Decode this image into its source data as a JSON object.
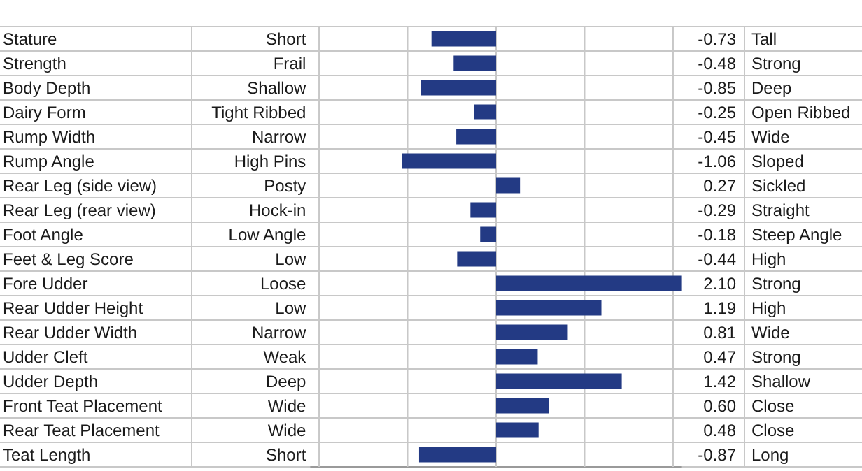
{
  "chart_data": {
    "type": "bar",
    "orientation": "horizontal",
    "categories": [
      "Stature",
      "Strength",
      "Body Depth",
      "Dairy Form",
      "Rump Width",
      "Rump Angle",
      "Rear Leg (side view)",
      "Rear Leg (rear view)",
      "Foot Angle",
      "Feet & Leg Score",
      "Fore Udder",
      "Rear Udder Height",
      "Rear Udder Width",
      "Udder Cleft",
      "Udder Depth",
      "Front Teat Placement",
      "Rear Teat Placement",
      "Teat Length"
    ],
    "values": [
      -0.73,
      -0.48,
      -0.85,
      -0.25,
      -0.45,
      -1.06,
      0.27,
      -0.29,
      -0.18,
      -0.44,
      2.1,
      1.19,
      0.81,
      0.47,
      1.42,
      0.6,
      0.48,
      -0.87
    ],
    "value_labels": [
      "-0.73",
      "-0.48",
      "-0.85",
      "-0.25",
      "-0.45",
      "-1.06",
      "0.27",
      "-0.29",
      "-0.18",
      "-0.44",
      "2.10",
      "1.19",
      "0.81",
      "0.47",
      "1.42",
      "0.60",
      "0.48",
      "-0.87"
    ],
    "color": "#233a84",
    "xlim": [
      -2.1,
      2.1
    ],
    "xticks": [
      {
        "value": -2,
        "label": null
      },
      {
        "value": -1,
        "label": null
      },
      {
        "value": 0,
        "label": null
      },
      {
        "value": 1,
        "label": null
      },
      {
        "value": 2,
        "label": null
      }
    ],
    "grid": true,
    "annotations": [
      "Short",
      "Frail",
      "Shallow",
      "Tight Ribbed",
      "Narrow",
      "High Pins",
      "Posty",
      "Hock-in",
      "Low Angle",
      "Low",
      "Loose",
      "Low",
      "Narrow",
      "Weak",
      "Deep",
      "Wide",
      "Wide",
      "Short",
      "Tall",
      "Strong",
      "Deep",
      "Open Ribbed",
      "Wide",
      "Sloped",
      "Sickled",
      "Straight",
      "Steep Angle",
      "High",
      "Strong",
      "High",
      "Wide",
      "Strong",
      "Shallow",
      "Close",
      "Close",
      "Long"
    ]
  }
}
